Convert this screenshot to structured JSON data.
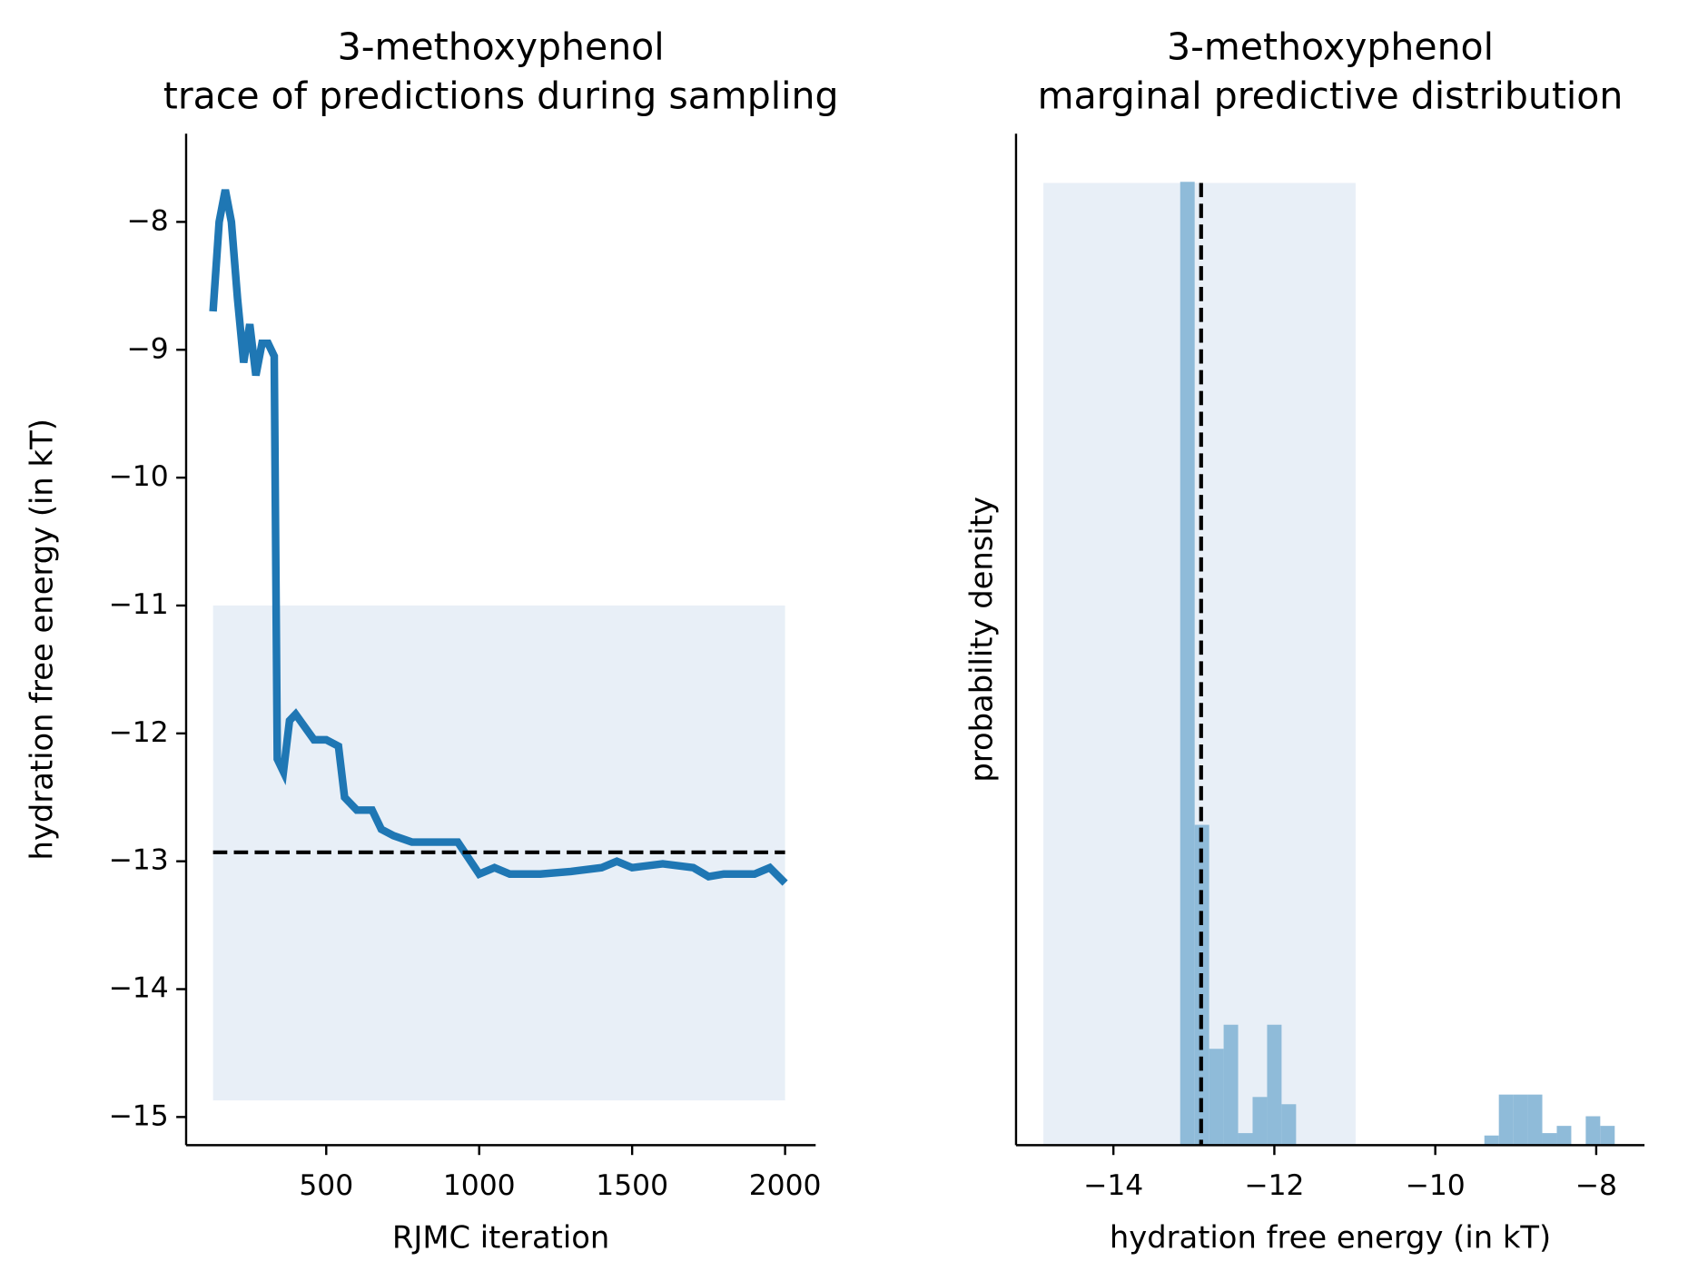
{
  "chart_data": [
    {
      "type": "line",
      "title": "3-methoxyphenol",
      "subtitle": "trace of predictions during sampling",
      "x_label": "RJMC iteration",
      "y_label": "hydration free energy (in kT)",
      "x": [
        130,
        150,
        170,
        190,
        210,
        230,
        250,
        270,
        290,
        310,
        330,
        340,
        360,
        380,
        400,
        430,
        460,
        500,
        540,
        560,
        600,
        650,
        680,
        720,
        780,
        850,
        930,
        1000,
        1050,
        1100,
        1200,
        1300,
        1400,
        1450,
        1500,
        1600,
        1700,
        1750,
        1800,
        1900,
        1950,
        2000
      ],
      "values": [
        -8.7,
        -8.0,
        -7.75,
        -8.0,
        -8.6,
        -9.1,
        -8.8,
        -9.2,
        -8.95,
        -8.95,
        -9.05,
        -12.2,
        -12.3,
        -11.9,
        -11.85,
        -11.95,
        -12.05,
        -12.05,
        -12.1,
        -12.5,
        -12.6,
        -12.6,
        -12.75,
        -12.8,
        -12.85,
        -12.85,
        -12.85,
        -13.1,
        -13.05,
        -13.1,
        -13.1,
        -13.08,
        -13.05,
        -13.0,
        -13.05,
        -13.02,
        -13.05,
        -13.12,
        -13.1,
        -13.1,
        -13.05,
        -13.17
      ],
      "color": "#1f77b4",
      "reference_value": -12.93,
      "shaded_range": [
        -14.87,
        -11.0
      ],
      "shade_color": "#e8eff7",
      "xlim": [
        42,
        2100
      ],
      "ylim": [
        -15.22,
        -7.31
      ],
      "xticks": [
        500,
        1000,
        1500,
        2000
      ],
      "yticks": [
        {
          "value": -8,
          "label": "−8"
        },
        {
          "value": -9,
          "label": "−9"
        },
        {
          "value": -10,
          "label": "−10"
        },
        {
          "value": -11,
          "label": "−11"
        },
        {
          "value": -12,
          "label": "−12"
        },
        {
          "value": -13,
          "label": "−13"
        },
        {
          "value": -14,
          "label": "−14"
        },
        {
          "value": -15,
          "label": "−15"
        }
      ]
    },
    {
      "type": "histogram",
      "title": "3-methoxyphenol",
      "subtitle": "marginal predictive distribution",
      "x_label": "hydration free energy (in kT)",
      "y_label": "probability density",
      "bins": [
        -13.17,
        -12.99,
        -12.81,
        -12.63,
        -12.45,
        -12.27,
        -12.09,
        -11.91,
        -11.73,
        -11.55,
        -11.37,
        -11.19,
        -11.01,
        -10.83,
        -10.65,
        -10.47,
        -10.29,
        -10.11,
        -9.93,
        -9.75,
        -9.57,
        -9.39,
        -9.21,
        -9.03,
        -8.85,
        -8.67,
        -8.49,
        -8.31,
        -8.13,
        -7.95,
        -7.77
      ],
      "values": [
        4.0,
        1.33,
        0.4,
        0.5,
        0.05,
        0.2,
        0.5,
        0.17,
        0,
        0,
        0,
        0,
        0,
        0,
        0,
        0,
        0,
        0,
        0,
        0,
        0,
        0.04,
        0.21,
        0.21,
        0.21,
        0.05,
        0.08,
        0,
        0.12,
        0.08
      ],
      "color": "#8fbbd9",
      "reference_value": -12.91,
      "shaded_range": [
        -14.87,
        -10.99
      ],
      "shade_color": "#e8eff7",
      "xlim": [
        -15.21,
        -7.4
      ],
      "ylim": [
        0,
        4.2
      ],
      "xticks": [
        {
          "value": -14,
          "label": "−14"
        },
        {
          "value": -12,
          "label": "−12"
        },
        {
          "value": -10,
          "label": "−10"
        },
        {
          "value": -8,
          "label": "−8"
        }
      ]
    }
  ]
}
